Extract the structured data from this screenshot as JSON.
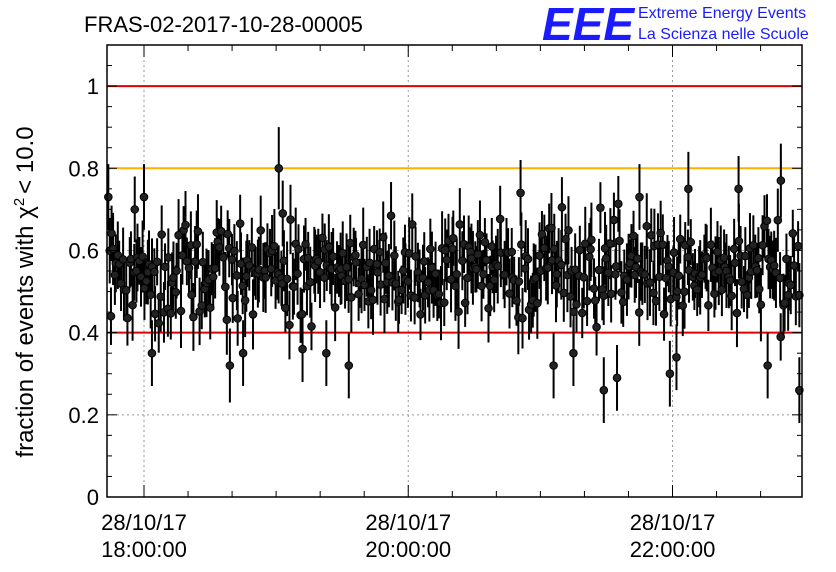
{
  "chart_data": {
    "type": "scatter",
    "title": "FRAS-02-2017-10-28-00005",
    "ylabel_prefix": "fraction of events with",
    "ylabel_symbol": "χ",
    "ylabel_superscript": "2",
    "ylabel_suffix": "< 10.0",
    "xlabel": "",
    "x_range_hours": [
      17.72,
      22.98
    ],
    "ylim": [
      0,
      1.1
    ],
    "y_ticks": [
      0,
      0.2,
      0.4,
      0.6,
      0.8,
      1
    ],
    "y_tick_labels": [
      "0",
      "0.2",
      "0.4",
      "0.6",
      "0.8",
      "1"
    ],
    "x_ticks_hours": [
      18,
      20,
      22
    ],
    "x_tick_labels": [
      {
        "date": "28/10/17",
        "time": "18:00:00"
      },
      {
        "date": "28/10/17",
        "time": "20:00:00"
      },
      {
        "date": "28/10/17",
        "time": "22:00:00"
      }
    ],
    "grid": true,
    "reference_lines": [
      {
        "y": 1.0,
        "color": "#e00000"
      },
      {
        "y": 0.8,
        "color": "#ffb000"
      },
      {
        "y": 0.4,
        "color": "#e00000"
      }
    ],
    "series": [
      {
        "name": "fraction",
        "marker_color": "#000000",
        "n_points": 420,
        "mean": 0.55,
        "spread": 0.08,
        "error": 0.07,
        "highlights": [
          {
            "x": 17.73,
            "y": 0.73,
            "err": 0.08
          },
          {
            "x": 17.75,
            "y": 0.44,
            "err": 0.07
          },
          {
            "x": 17.93,
            "y": 0.7,
            "err": 0.08
          },
          {
            "x": 18.0,
            "y": 0.73,
            "err": 0.08
          },
          {
            "x": 18.06,
            "y": 0.35,
            "err": 0.08
          },
          {
            "x": 18.65,
            "y": 0.32,
            "err": 0.09
          },
          {
            "x": 18.75,
            "y": 0.35,
            "err": 0.08
          },
          {
            "x": 19.02,
            "y": 0.8,
            "err": 0.1
          },
          {
            "x": 19.05,
            "y": 0.69,
            "err": 0.08
          },
          {
            "x": 19.2,
            "y": 0.36,
            "err": 0.08
          },
          {
            "x": 19.38,
            "y": 0.35,
            "err": 0.08
          },
          {
            "x": 19.55,
            "y": 0.32,
            "err": 0.08
          },
          {
            "x": 20.85,
            "y": 0.74,
            "err": 0.08
          },
          {
            "x": 21.1,
            "y": 0.32,
            "err": 0.08
          },
          {
            "x": 21.25,
            "y": 0.35,
            "err": 0.08
          },
          {
            "x": 21.48,
            "y": 0.26,
            "err": 0.08
          },
          {
            "x": 21.58,
            "y": 0.29,
            "err": 0.08
          },
          {
            "x": 21.75,
            "y": 0.73,
            "err": 0.08
          },
          {
            "x": 21.98,
            "y": 0.3,
            "err": 0.08
          },
          {
            "x": 22.03,
            "y": 0.34,
            "err": 0.08
          },
          {
            "x": 22.12,
            "y": 0.75,
            "err": 0.09
          },
          {
            "x": 22.5,
            "y": 0.75,
            "err": 0.08
          },
          {
            "x": 22.72,
            "y": 0.32,
            "err": 0.08
          },
          {
            "x": 22.82,
            "y": 0.77,
            "err": 0.09
          },
          {
            "x": 22.96,
            "y": 0.26,
            "err": 0.08
          }
        ]
      }
    ]
  },
  "logo": {
    "letters": "EEE",
    "line1": "Extreme Energy Events",
    "line2": "La Scienza nelle Scuole"
  }
}
